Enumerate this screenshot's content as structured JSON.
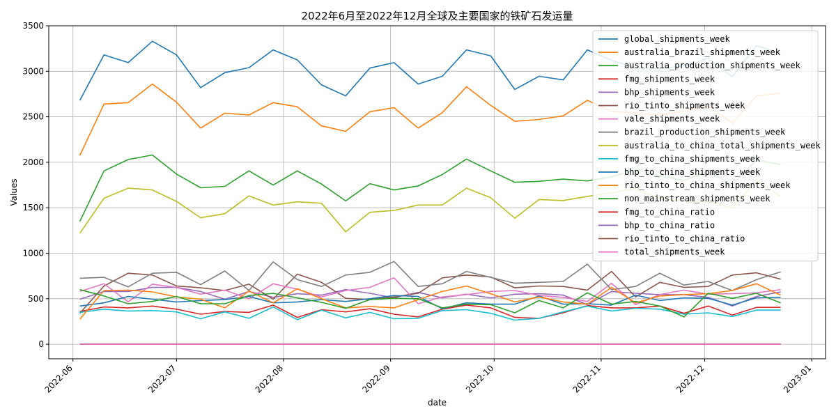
{
  "chart_data": {
    "type": "line",
    "title": "2022年6月至2022年12月全球及主要国家的铁矿石发运量",
    "xlabel": "date",
    "ylabel": "Values",
    "ylim": [
      -160,
      3500
    ],
    "yticks": [
      0,
      500,
      1000,
      1500,
      2000,
      2500,
      3000,
      3500
    ],
    "xlim": [
      "2021-05-25",
      "2023-01-05"
    ],
    "xticks": [
      "2022-06",
      "2022-07",
      "2022-08",
      "2022-09",
      "2022-10",
      "2022-11",
      "2022-12",
      "2023-01"
    ],
    "grid": true,
    "legend_position": "top-right",
    "x": [
      "2022-06-03",
      "2022-06-10",
      "2022-06-17",
      "2022-06-24",
      "2022-07-01",
      "2022-07-08",
      "2022-07-15",
      "2022-07-22",
      "2022-07-29",
      "2022-08-05",
      "2022-08-12",
      "2022-08-19",
      "2022-08-26",
      "2022-09-02",
      "2022-09-09",
      "2022-09-16",
      "2022-09-23",
      "2022-09-30",
      "2022-10-07",
      "2022-10-14",
      "2022-10-21",
      "2022-10-28",
      "2022-11-04",
      "2022-11-11",
      "2022-11-18",
      "2022-11-25",
      "2022-12-02",
      "2022-12-09",
      "2022-12-16",
      "2022-12-23"
    ],
    "series": [
      {
        "name": "global_shipments_week",
        "color": "#1f77b4",
        "values": [
          2680,
          3180,
          3095,
          3330,
          3180,
          2820,
          2985,
          3040,
          3235,
          3125,
          2850,
          2730,
          3035,
          3095,
          2860,
          2945,
          3235,
          3170,
          2800,
          2945,
          2905,
          3235,
          3120,
          3040,
          3030,
          3060,
          3140,
          2940,
          3280,
          3200
        ]
      },
      {
        "name": "australia_brazil_shipments_week",
        "color": "#ff7f0e",
        "values": [
          2075,
          2640,
          2655,
          2860,
          2660,
          2375,
          2540,
          2520,
          2655,
          2610,
          2400,
          2340,
          2555,
          2600,
          2375,
          2545,
          2830,
          2625,
          2450,
          2470,
          2510,
          2680,
          2560,
          2540,
          2520,
          2560,
          2620,
          2430,
          2730,
          2760
        ]
      },
      {
        "name": "australia_production_shipments_week",
        "color": "#2ca02c",
        "values": [
          1350,
          1905,
          2030,
          2080,
          1870,
          1720,
          1735,
          1905,
          1750,
          1905,
          1760,
          1575,
          1765,
          1695,
          1740,
          1865,
          2035,
          1905,
          1780,
          1790,
          1815,
          1795,
          1840,
          1920,
          1850,
          1800,
          1900,
          1750,
          2025,
          1975
        ]
      },
      {
        "name": "fmg_shipments_week",
        "color": "#d62728",
        "values": [
          360,
          410,
          400,
          420,
          385,
          330,
          360,
          350,
          430,
          295,
          380,
          355,
          390,
          330,
          300,
          385,
          430,
          400,
          295,
          285,
          345,
          425,
          400,
          400,
          420,
          340,
          420,
          320,
          405,
          405
        ]
      },
      {
        "name": "bhp_shipments_week",
        "color": "#9467bd",
        "values": [
          495,
          580,
          580,
          625,
          625,
          580,
          495,
          580,
          515,
          555,
          540,
          600,
          560,
          510,
          570,
          510,
          550,
          510,
          550,
          555,
          540,
          435,
          580,
          560,
          545,
          545,
          515,
          420,
          525,
          575
        ]
      },
      {
        "name": "rio_tinto_shipments_week",
        "color": "#8c564b",
        "values": [
          340,
          640,
          780,
          760,
          640,
          620,
          590,
          660,
          495,
          770,
          680,
          505,
          490,
          520,
          560,
          730,
          760,
          740,
          620,
          640,
          635,
          595,
          800,
          520,
          680,
          625,
          635,
          760,
          785,
          715
        ]
      },
      {
        "name": "vale_shipments_week",
        "color": "#e377c2",
        "values": [
          580,
          665,
          465,
          660,
          625,
          550,
          595,
          500,
          665,
          605,
          520,
          590,
          625,
          730,
          445,
          520,
          545,
          580,
          590,
          535,
          515,
          470,
          670,
          435,
          545,
          595,
          550,
          555,
          565,
          600
        ]
      },
      {
        "name": "brazil_production_shipments_week",
        "color": "#7f7f7f",
        "values": [
          725,
          735,
          630,
          780,
          790,
          655,
          805,
          590,
          905,
          710,
          635,
          760,
          790,
          910,
          635,
          665,
          800,
          735,
          670,
          680,
          690,
          880,
          600,
          635,
          780,
          650,
          690,
          590,
          710,
          795
        ]
      },
      {
        "name": "australia_to_china_total_shipments_week",
        "color": "#bcbd22",
        "values": [
          1220,
          1605,
          1715,
          1695,
          1570,
          1390,
          1435,
          1630,
          1530,
          1565,
          1550,
          1235,
          1450,
          1470,
          1530,
          1530,
          1715,
          1610,
          1385,
          1590,
          1580,
          1625,
          1665,
          1710,
          1600,
          1575,
          1565,
          1500,
          1795,
          1625
        ]
      },
      {
        "name": "fmg_to_china_shipments_week",
        "color": "#17becf",
        "values": [
          350,
          385,
          365,
          370,
          355,
          280,
          355,
          285,
          410,
          270,
          375,
          290,
          350,
          280,
          285,
          370,
          380,
          340,
          265,
          285,
          355,
          420,
          365,
          395,
          385,
          330,
          345,
          305,
          375,
          375
        ]
      },
      {
        "name": "bhp_to_china_shipments_week",
        "color": "#1f77b4",
        "values": [
          420,
          455,
          525,
          495,
          465,
          480,
          490,
          525,
          455,
          465,
          490,
          470,
          500,
          535,
          525,
          390,
          455,
          440,
          440,
          530,
          440,
          445,
          430,
          540,
          480,
          510,
          505,
          430,
          510,
          515
        ]
      },
      {
        "name": "rio_tinto_to_china_shipments_week",
        "color": "#ff7f0e",
        "values": [
          275,
          590,
          595,
          575,
          520,
          495,
          400,
          585,
          455,
          610,
          500,
          400,
          415,
          400,
          490,
          580,
          640,
          555,
          465,
          520,
          465,
          440,
          625,
          455,
          530,
          545,
          555,
          590,
          665,
          540
        ]
      },
      {
        "name": "non_mainstream_shipments_week",
        "color": "#2ca02c",
        "values": [
          600,
          530,
          445,
          470,
          525,
          445,
          445,
          535,
          560,
          510,
          460,
          395,
          490,
          505,
          500,
          400,
          440,
          435,
          345,
          480,
          400,
          565,
          440,
          470,
          420,
          300,
          560,
          505,
          560,
          455
        ]
      },
      {
        "name": "fmg_to_china_ratio",
        "color": "#d62728",
        "values": [
          1,
          1,
          1,
          1,
          1,
          1,
          1,
          1,
          1,
          1,
          1,
          1,
          1,
          1,
          1,
          1,
          1,
          1,
          1,
          1,
          1,
          1,
          1,
          1,
          1,
          1,
          1,
          1,
          1,
          1
        ]
      },
      {
        "name": "bhp_to_china_ratio",
        "color": "#9467bd",
        "values": [
          0.8,
          0.8,
          0.8,
          0.8,
          0.8,
          0.8,
          0.8,
          0.8,
          0.8,
          0.8,
          0.8,
          0.8,
          0.8,
          0.8,
          0.8,
          0.8,
          0.8,
          0.8,
          0.8,
          0.8,
          0.8,
          0.8,
          0.8,
          0.8,
          0.8,
          0.8,
          0.8,
          0.8,
          0.8,
          0.8
        ]
      },
      {
        "name": "rio_tinto_to_china_ratio",
        "color": "#8c564b",
        "values": [
          0.7,
          0.7,
          0.7,
          0.7,
          0.7,
          0.7,
          0.7,
          0.7,
          0.7,
          0.7,
          0.7,
          0.7,
          0.7,
          0.7,
          0.7,
          0.7,
          0.7,
          0.7,
          0.7,
          0.7,
          0.7,
          0.7,
          0.7,
          0.7,
          0.7,
          0.7,
          0.7,
          0.7,
          0.7,
          0.7
        ]
      },
      {
        "name": "total_shipments_week",
        "color": "#e377c2",
        "values": [
          0,
          0,
          0,
          0,
          0,
          0,
          0,
          0,
          0,
          0,
          0,
          0,
          0,
          0,
          0,
          0,
          0,
          0,
          0,
          0,
          0,
          0,
          0,
          0,
          0,
          0,
          0,
          0,
          0,
          0
        ]
      }
    ]
  }
}
